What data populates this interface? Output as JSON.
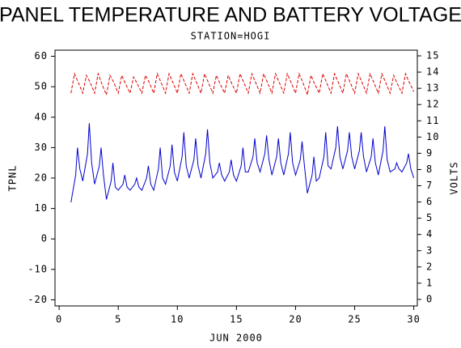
{
  "chart_data": {
    "type": "line",
    "title": "PANEL TEMPERATURE AND BATTERY VOLTAGE",
    "subtitle": "STATION=HOGI",
    "x_label": "JUN 2000",
    "y_label": "TPNL",
    "y2_label": "VOLTS",
    "xlim": [
      -0.35,
      30.3
    ],
    "xticks": [
      0,
      5,
      10,
      15,
      20,
      25,
      30
    ],
    "ylim": [
      -22,
      62
    ],
    "yticks": [
      -20,
      -10,
      0,
      10,
      20,
      30,
      40,
      50,
      60
    ],
    "y2lim": [
      -0.4,
      15.35
    ],
    "y2ticks": [
      0,
      1,
      2,
      3,
      4,
      5,
      6,
      7,
      8,
      9,
      10,
      11,
      12,
      13,
      14,
      15
    ],
    "series": [
      {
        "color": "#0000cc",
        "dash": false,
        "axis": "y",
        "x": [
          1,
          1.4,
          1.55,
          1.75,
          2,
          2.4,
          2.55,
          2.75,
          3,
          3.4,
          3.55,
          3.75,
          4,
          4.4,
          4.55,
          4.75,
          5,
          5.4,
          5.55,
          5.75,
          6,
          6.4,
          6.55,
          6.75,
          7,
          7.4,
          7.55,
          7.75,
          8,
          8.4,
          8.55,
          8.75,
          9,
          9.4,
          9.55,
          9.75,
          10,
          10.4,
          10.55,
          10.75,
          11,
          11.4,
          11.55,
          11.75,
          12,
          12.4,
          12.55,
          12.75,
          13,
          13.4,
          13.55,
          13.75,
          14,
          14.4,
          14.55,
          14.75,
          15,
          15.4,
          15.55,
          15.75,
          16,
          16.4,
          16.55,
          16.75,
          17,
          17.4,
          17.55,
          17.75,
          18,
          18.4,
          18.55,
          18.75,
          19,
          19.4,
          19.55,
          19.75,
          20,
          20.4,
          20.55,
          20.75,
          21,
          21.4,
          21.55,
          21.75,
          22,
          22.4,
          22.55,
          22.75,
          23,
          23.4,
          23.55,
          23.75,
          24,
          24.4,
          24.55,
          24.75,
          25,
          25.4,
          25.55,
          25.75,
          26,
          26.4,
          26.55,
          26.75,
          27,
          27.4,
          27.55,
          27.75,
          28,
          28.4,
          28.55,
          28.75,
          29,
          29.4,
          29.55,
          29.75,
          30
        ],
        "values": [
          12,
          21,
          30,
          23,
          19,
          28,
          38,
          25,
          18,
          24,
          30,
          21,
          13,
          19,
          25,
          17,
          16,
          18,
          21,
          17,
          16,
          18,
          20,
          17,
          16,
          20,
          24,
          18,
          16,
          23,
          30,
          20,
          18,
          24,
          31,
          22,
          19,
          27,
          35,
          24,
          20,
          26,
          33,
          24,
          20,
          28,
          36,
          25,
          20,
          22,
          25,
          21,
          19,
          22,
          26,
          21,
          19,
          24,
          30,
          22,
          22,
          27,
          33,
          25,
          22,
          28,
          34,
          26,
          21,
          27,
          33,
          25,
          21,
          28,
          35,
          25,
          21,
          26,
          32,
          24,
          15,
          21,
          27,
          19,
          20,
          27,
          35,
          24,
          23,
          30,
          37,
          27,
          23,
          29,
          35,
          27,
          23,
          29,
          35,
          27,
          22,
          27,
          33,
          25,
          21,
          29,
          37,
          26,
          22,
          23,
          25,
          23,
          22,
          25,
          28,
          23,
          20
        ]
      },
      {
        "color": "#dd0000",
        "dash": true,
        "axis": "y2",
        "x": [
          1,
          1.3,
          1.6,
          2,
          2.3,
          2.6,
          3,
          3.3,
          3.6,
          4,
          4.3,
          4.6,
          5,
          5.3,
          5.6,
          6,
          6.3,
          6.6,
          7,
          7.3,
          7.6,
          8,
          8.3,
          8.6,
          9,
          9.3,
          9.6,
          10,
          10.3,
          10.6,
          11,
          11.3,
          11.6,
          12,
          12.3,
          12.6,
          13,
          13.3,
          13.6,
          14,
          14.3,
          14.6,
          15,
          15.3,
          15.6,
          16,
          16.3,
          16.6,
          17,
          17.3,
          17.6,
          18,
          18.3,
          18.6,
          19,
          19.3,
          19.6,
          20,
          20.3,
          20.6,
          21,
          21.3,
          21.6,
          22,
          22.3,
          22.6,
          23,
          23.3,
          23.6,
          24,
          24.3,
          24.6,
          25,
          25.3,
          25.6,
          26,
          26.3,
          26.6,
          27,
          27.3,
          27.6,
          28,
          28.3,
          28.6,
          29,
          29.3,
          29.6,
          30
        ],
        "values": [
          12.7,
          13.9,
          13.4,
          12.7,
          13.8,
          13.4,
          12.7,
          13.9,
          13.3,
          12.6,
          13.8,
          13.4,
          12.7,
          13.8,
          13.3,
          12.7,
          13.7,
          13.3,
          12.7,
          13.8,
          13.4,
          12.7,
          13.9,
          13.4,
          12.7,
          13.9,
          13.4,
          12.7,
          13.9,
          13.4,
          12.7,
          13.9,
          13.4,
          12.7,
          13.9,
          13.4,
          12.7,
          13.8,
          13.3,
          12.7,
          13.8,
          13.3,
          12.7,
          13.9,
          13.4,
          12.7,
          13.9,
          13.4,
          12.7,
          13.9,
          13.4,
          12.7,
          13.9,
          13.4,
          12.7,
          13.9,
          13.4,
          12.7,
          13.9,
          13.4,
          12.6,
          13.8,
          13.3,
          12.7,
          13.9,
          13.4,
          12.7,
          13.9,
          13.4,
          12.7,
          13.9,
          13.4,
          12.7,
          13.9,
          13.4,
          12.7,
          13.9,
          13.4,
          12.7,
          13.9,
          13.4,
          12.7,
          13.8,
          13.3,
          12.7,
          13.9,
          13.4,
          12.8
        ]
      }
    ]
  }
}
